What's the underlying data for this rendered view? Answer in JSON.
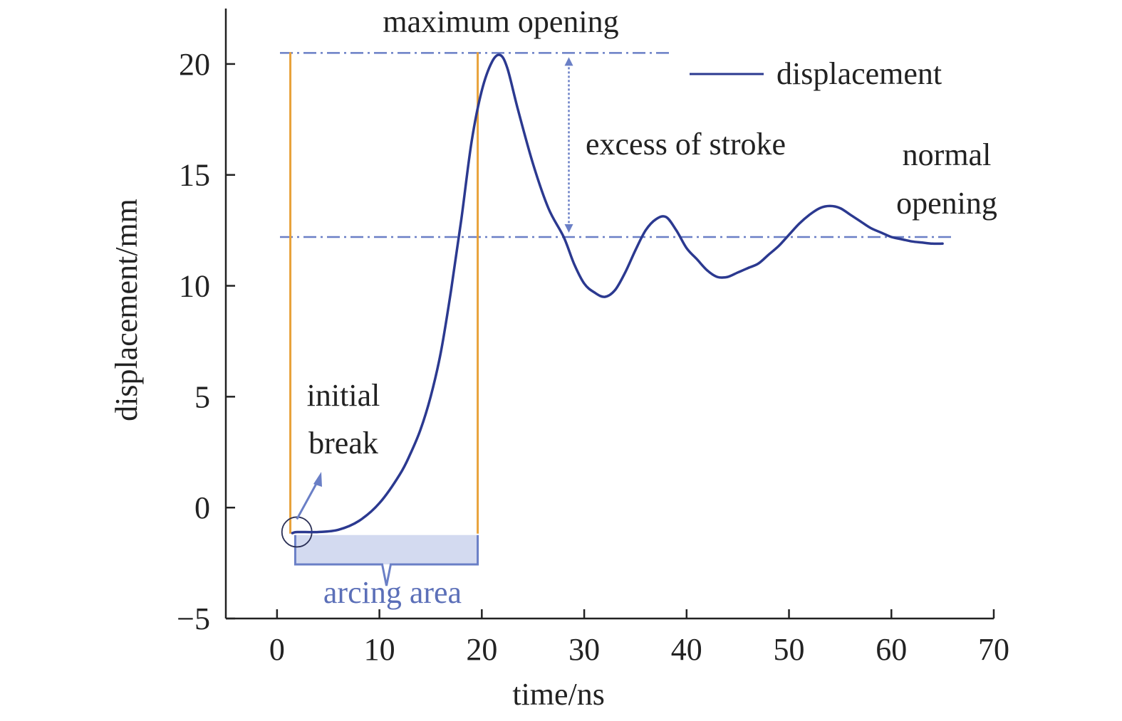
{
  "chart_data": {
    "type": "line",
    "title": "",
    "xlabel": "time/ns",
    "ylabel": "displacement/mm",
    "xlim": [
      -5,
      70
    ],
    "ylim": [
      -5,
      22.5
    ],
    "x_ticks": [
      0,
      10,
      20,
      30,
      40,
      50,
      60,
      70
    ],
    "y_ticks": [
      -5,
      0,
      5,
      10,
      15,
      20
    ],
    "x_tick_labels": [
      "0",
      "10",
      "20",
      "30",
      "40",
      "50",
      "60",
      "70"
    ],
    "y_tick_labels": [
      "−5",
      "0",
      "5",
      "10",
      "15",
      "20"
    ],
    "grid": false,
    "legend_position": "top-right",
    "series": [
      {
        "name": "displacement",
        "color": "#2b3990",
        "x": [
          1.5,
          2,
          4,
          6,
          8,
          10,
          12,
          13,
          14,
          15,
          16,
          17,
          18,
          19,
          20,
          21,
          21.8,
          22.5,
          23.5,
          25,
          26.5,
          28,
          29,
          30,
          31,
          32,
          33,
          34,
          35,
          36,
          37,
          38,
          39,
          40,
          41,
          42,
          43,
          44,
          45,
          46,
          47,
          48,
          49,
          50,
          51,
          52,
          53,
          54,
          55,
          56,
          57,
          58,
          59,
          60,
          61,
          62,
          63,
          64,
          65
        ],
        "y": [
          -1.15,
          -1.1,
          -1.1,
          -1.0,
          -0.6,
          0.2,
          1.5,
          2.4,
          3.5,
          5.0,
          7.0,
          9.8,
          13.0,
          16.5,
          18.8,
          20.1,
          20.4,
          19.8,
          18.0,
          15.5,
          13.5,
          12.2,
          11.0,
          10.1,
          9.7,
          9.5,
          9.8,
          10.6,
          11.6,
          12.5,
          13.0,
          13.1,
          12.5,
          11.7,
          11.2,
          10.7,
          10.4,
          10.4,
          10.6,
          10.8,
          11.0,
          11.4,
          11.8,
          12.3,
          12.8,
          13.2,
          13.5,
          13.6,
          13.5,
          13.2,
          12.9,
          12.6,
          12.4,
          12.2,
          12.1,
          12.0,
          11.95,
          11.9,
          11.9
        ]
      }
    ],
    "reference_lines": {
      "maximum_opening": 20.5,
      "normal_opening": 12.2
    },
    "vertical_markers": [
      1.3,
      19.6
    ],
    "excess_arrow_x": 28.5,
    "arcing_area": {
      "x_start": 1.5,
      "x_end": 19.6,
      "y_top": -1.3,
      "y_bottom": -2.4
    },
    "initial_break_point": {
      "x": 1.8,
      "y": -1.1
    },
    "annotations": {
      "maximum_opening": "maximum opening",
      "excess_of_stroke": "excess of stroke",
      "normal_opening_line1": "normal",
      "normal_opening_line2": "opening",
      "initial_break_line1": "initial",
      "initial_break_line2": "break",
      "arcing_area": "arcing area"
    },
    "colors": {
      "curve": "#2b3990",
      "reference": "#6a7fc6",
      "marker": "#e8a23a",
      "arcing_fill": "#d3daf0",
      "arcing_text": "#5b6fb8",
      "axis": "#222222"
    }
  }
}
